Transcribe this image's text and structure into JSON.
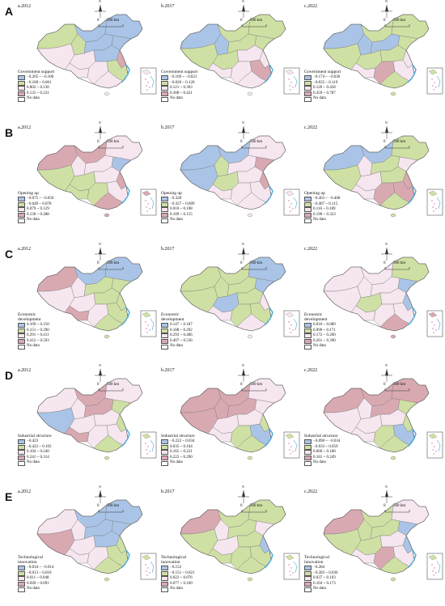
{
  "colors": {
    "class1": "#a9c4e6",
    "class2": "#cfe0a4",
    "class3": "#f6e6ef",
    "class4": "#d9a9b2",
    "nodata": "#ffffff",
    "boundary": "#7a7a7a",
    "coast": "#4aa8d8"
  },
  "map_common": {
    "scale_zero": "0",
    "scale_label": "500 km",
    "compass_label": "N",
    "no_data_label": "No data"
  },
  "rows": [
    {
      "letter": "A",
      "panels": [
        {
          "year": "a.2012",
          "legend_title": "Government support",
          "classes": [
            "−0.205 ~ −0.100",
            "−0.100 ~ 0.001",
            "0.002 ~ 0.130",
            "0.131 ~ 0.231"
          ]
        },
        {
          "year": "b.2017",
          "legend_title": "Government support",
          "classes": [
            "−0.169 ~ −0.021",
            "−0.020 ~ 0.120",
            "0.121 ~ 0.303",
            "0.308 ~ 0.421"
          ]
        },
        {
          "year": "c.2022",
          "legend_title": "Government support",
          "classes": [
            "−0.174 ~ −0.036",
            "−0.035 ~ 0.119",
            "0.120 ~ 0.458",
            "0.459 ~ 0.787"
          ]
        }
      ]
    },
    {
      "letter": "B",
      "panels": [
        {
          "year": "a.2012",
          "legend_title": "Opening up",
          "classes": [
            "−0.075 ~ −0.050",
            "−0.049 ~ 0.078",
            "0.079 ~ 0.129",
            "0.130 ~ 0.288"
          ]
        },
        {
          "year": "b.2017",
          "legend_title": "Opening up",
          "classes": [
            "−0.328",
            "−0.327 ~ 0.009",
            "0.010 ~ 0.108",
            "0.109 ~ 0.155"
          ]
        },
        {
          "year": "c.2022",
          "legend_title": "Opening up",
          "classes": [
            "−0.463 ~ −0.408",
            "−0.407 ~ 0.115",
            "0.116 ~ 0.189",
            "0.190 ~ 0.323"
          ]
        }
      ]
    },
    {
      "letter": "C",
      "panels": [
        {
          "year": "a.2012",
          "legend_title": "Economic\ndevelopment",
          "classes": [
            "0.109 ~ 0.150",
            "0.151 ~ 0.290",
            "0.291 ~ 0.411",
            "0.412 ~ 0.593"
          ]
        },
        {
          "year": "b.2017",
          "legend_title": "Economic\ndevelopment",
          "classes": [
            "0.147 ~ 0.187",
            "0.188 ~ 0.292",
            "0.293 ~ 0.406",
            "0.407 ~ 0.536"
          ]
        },
        {
          "year": "c.2022",
          "legend_title": "Economic\ndevelopment",
          "classes": [
            "0.010 ~ 0.089",
            "0.090 ~ 0.171",
            "0.172 ~ 0.260",
            "0.261 ~ 0.390"
          ]
        }
      ]
    },
    {
      "letter": "D",
      "panels": [
        {
          "year": "a.2012",
          "legend_title": "Industrial structure",
          "classes": [
            "−0.423",
            "−0.422 ~ 0.103",
            "0.104 ~ 0.240",
            "0.241 ~ 0.314"
          ]
        },
        {
          "year": "b.2017",
          "legend_title": "Industrial structure",
          "classes": [
            "−0.222 ~ 0.034",
            "0.035 ~ 0.164",
            "0.165 ~ 0.221",
            "0.222 ~ 0.290"
          ]
        },
        {
          "year": "c.2022",
          "legend_title": "Industrial structure",
          "classes": [
            "−0.090 ~ −0.034",
            "−0.033 ~ 0.059",
            "0.060 ~ 0.180",
            "0.181 ~ 0.249"
          ]
        }
      ]
    },
    {
      "letter": "E",
      "panels": [
        {
          "year": "a.2012",
          "legend_title": "Technological\ninnovation",
          "classes": [
            "−0.034 ~ −0.014",
            "−0.013 ~ 0.010",
            "0.011 ~ 0.048",
            "0.049 ~ 0.091"
          ]
        },
        {
          "year": "b.2017",
          "legend_title": "Technological\ninnovation",
          "classes": [
            "−0.152",
            "−0.151 ~ 0.021",
            "0.022 ~ 0.076",
            "0.077 ~ 0.160"
          ]
        },
        {
          "year": "c.2022",
          "legend_title": "Technological\ninnovation",
          "classes": [
            "−0.284",
            "−0.283 ~ 0.036",
            "0.037 ~ 0.103",
            "0.104 ~ 0.173"
          ]
        }
      ]
    }
  ]
}
